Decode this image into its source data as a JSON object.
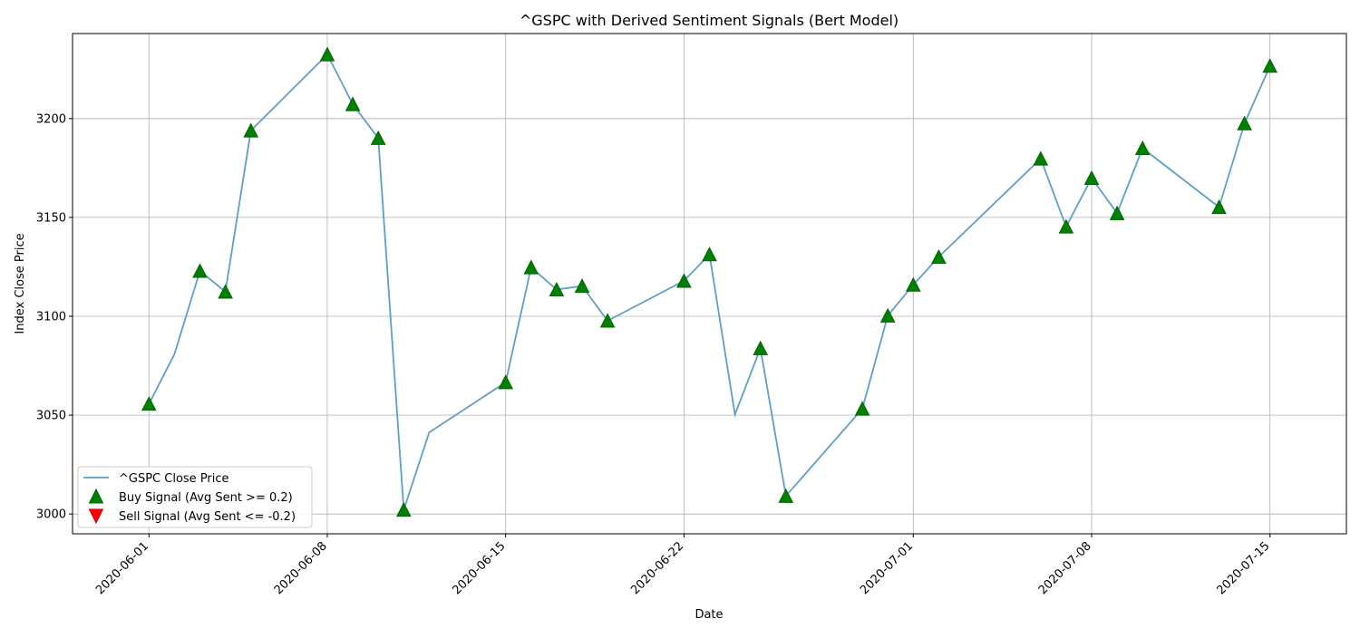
{
  "chart_data": {
    "type": "line",
    "title": "^GSPC with Derived Sentiment Signals (Bert Model)",
    "xlabel": "Date",
    "ylabel": "Index Close Price",
    "xlim": [
      "2020-05-29",
      "2020-07-18"
    ],
    "ylim": [
      2990,
      3243
    ],
    "x_ticks": [
      "2020-06-01",
      "2020-06-08",
      "2020-06-15",
      "2020-06-22",
      "2020-07-01",
      "2020-07-08",
      "2020-07-15"
    ],
    "y_ticks": [
      3000,
      3050,
      3100,
      3150,
      3200
    ],
    "grid": true,
    "legend_position": "lower-left",
    "colors": {
      "line": "#5f9ec9",
      "buy": "#008000",
      "sell": "#ff0000",
      "grid": "#b0b0b0"
    },
    "series": [
      {
        "name": "^GSPC Close Price",
        "kind": "line",
        "x": [
          "2020-06-01",
          "2020-06-02",
          "2020-06-03",
          "2020-06-04",
          "2020-06-05",
          "2020-06-08",
          "2020-06-09",
          "2020-06-10",
          "2020-06-11",
          "2020-06-12",
          "2020-06-15",
          "2020-06-16",
          "2020-06-17",
          "2020-06-18",
          "2020-06-19",
          "2020-06-22",
          "2020-06-23",
          "2020-06-24",
          "2020-06-25",
          "2020-06-26",
          "2020-06-29",
          "2020-06-30",
          "2020-07-01",
          "2020-07-02",
          "2020-07-06",
          "2020-07-07",
          "2020-07-08",
          "2020-07-09",
          "2020-07-10",
          "2020-07-13",
          "2020-07-14",
          "2020-07-15"
        ],
        "y": [
          3055.7,
          3080.8,
          3122.9,
          3112.4,
          3193.9,
          3232.4,
          3207.2,
          3190.1,
          3002.1,
          3041.3,
          3066.6,
          3124.7,
          3113.5,
          3115.3,
          3097.7,
          3117.9,
          3131.3,
          3050.3,
          3083.8,
          3009.1,
          3053.2,
          3100.3,
          3115.9,
          3130.0,
          3179.7,
          3145.3,
          3169.9,
          3152.1,
          3185.0,
          3155.2,
          3197.5,
          3226.6
        ]
      },
      {
        "name": "Buy Signal (Avg Sent >= 0.2)",
        "kind": "marker-up",
        "x": [
          "2020-06-01",
          "2020-06-03",
          "2020-06-04",
          "2020-06-05",
          "2020-06-08",
          "2020-06-09",
          "2020-06-10",
          "2020-06-11",
          "2020-06-15",
          "2020-06-16",
          "2020-06-17",
          "2020-06-18",
          "2020-06-19",
          "2020-06-22",
          "2020-06-23",
          "2020-06-25",
          "2020-06-26",
          "2020-06-29",
          "2020-06-30",
          "2020-07-01",
          "2020-07-02",
          "2020-07-06",
          "2020-07-07",
          "2020-07-08",
          "2020-07-09",
          "2020-07-10",
          "2020-07-13",
          "2020-07-14",
          "2020-07-15"
        ],
        "y": [
          3055.7,
          3122.9,
          3112.4,
          3193.9,
          3232.4,
          3207.2,
          3190.1,
          3002.1,
          3066.6,
          3124.7,
          3113.5,
          3115.3,
          3097.7,
          3117.9,
          3131.3,
          3083.8,
          3009.1,
          3053.2,
          3100.3,
          3115.9,
          3130.0,
          3179.7,
          3145.3,
          3169.9,
          3152.1,
          3185.0,
          3155.2,
          3197.5,
          3226.6
        ]
      },
      {
        "name": "Sell Signal (Avg Sent <= -0.2)",
        "kind": "marker-down",
        "x": [],
        "y": []
      }
    ]
  }
}
